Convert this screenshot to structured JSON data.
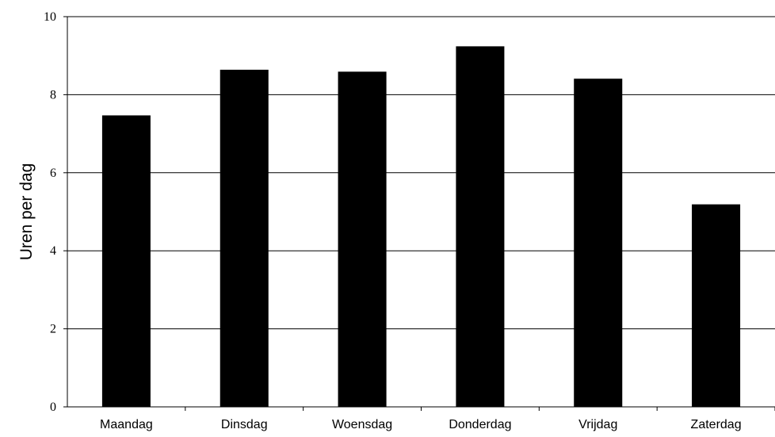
{
  "chart_data": {
    "type": "bar",
    "title": "",
    "xlabel": "",
    "ylabel": "Uren per dag",
    "categories": [
      "Maandag",
      "Dinsdag",
      "Woensdag",
      "Donderdag",
      "Vrijdag",
      "Zaterdag"
    ],
    "values": [
      7.47,
      8.64,
      8.59,
      9.24,
      8.41,
      5.19
    ],
    "ylim": [
      0,
      10
    ],
    "yticks": [
      "0",
      "2",
      "4",
      "6",
      "8",
      "10"
    ],
    "grid": true,
    "bar_color": "#000000",
    "gridline_color": "#000000"
  }
}
